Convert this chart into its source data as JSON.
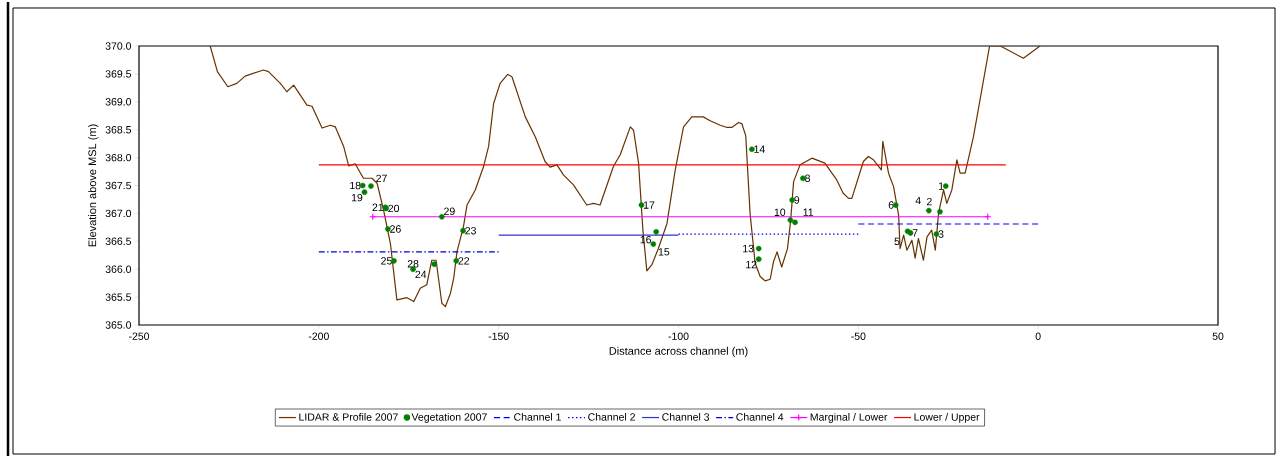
{
  "chart_data": {
    "type": "line",
    "xlabel": "Distance across channel (m)",
    "ylabel": "Elevation above MSL (m)",
    "xlim": [
      -250,
      50
    ],
    "xticks": [
      -250,
      -200,
      -150,
      -100,
      -50,
      0,
      50
    ],
    "ylim": [
      365,
      370
    ],
    "yticks": [
      {
        "value": 365,
        "label": "365.0"
      },
      365.5,
      {
        "value": 366,
        "label": "366.0"
      },
      366.5,
      {
        "value": 367,
        "label": "367.0"
      },
      367.5,
      {
        "value": 368,
        "label": "368.0"
      },
      368.5,
      {
        "value": 369,
        "label": "369.0"
      },
      369.5,
      {
        "value": 370,
        "label": "370.0"
      }
    ],
    "grid": false,
    "legend": "bottom",
    "series": [
      {
        "name": "LIDAR & Profile 2007",
        "color": "#663300",
        "marker": "none",
        "line_style": "solid",
        "x": [
          -230.2,
          -228.2,
          -225.3,
          -222.8,
          -220.5,
          -215.4,
          -214.0,
          -210.7,
          -208.9,
          -207.0,
          -203.3,
          -201.9,
          -199.1,
          -196.8,
          -195.4,
          -193.1,
          -191.7,
          -189.9,
          -187.6,
          -185.2,
          -183.8,
          -182.0,
          -180.1,
          -178.3,
          -175.5,
          -173.6,
          -171.8,
          -170.0,
          -168.6,
          -167.4,
          -165.8,
          -164.8,
          -163.4,
          -162.5,
          -161.6,
          -159.8,
          -158.8,
          -156.5,
          -154.2,
          -152.8,
          -151.4,
          -149.6,
          -147.5,
          -146.3,
          -142.6,
          -139.8,
          -137.1,
          -135.7,
          -133.8,
          -132.0,
          -129.2,
          -125.5,
          -123.6,
          -121.8,
          -118.1,
          -116.2,
          -113.4,
          -112.5,
          -111.1,
          -109.9,
          -108.8,
          -107.4,
          -105.6,
          -103.2,
          -100.9,
          -98.6,
          -96.3,
          -93.1,
          -91.2,
          -88.4,
          -86.5,
          -85.2,
          -83.3,
          -82.4,
          -81.3,
          -80.1,
          -78.7,
          -77.3,
          -75.9,
          -74.5,
          -73.6,
          -72.6,
          -71.3,
          -69.7,
          -68.8,
          -68.0,
          -66.2,
          -62.9,
          -59.3,
          -56.0,
          -54.2,
          -52.7,
          -51.8,
          -48.6,
          -47.2,
          -45.8,
          -43.6,
          -43.2,
          -41.6,
          -40.2,
          -38.8,
          -38.4,
          -37.4,
          -36.5,
          -35.1,
          -34.2,
          -33.3,
          -31.9,
          -30.9,
          -29.6,
          -28.6,
          -27.7,
          -26.3,
          -25.4,
          -24.0,
          -22.6,
          -21.7,
          -20.3,
          -18.0,
          -13.5,
          -10.5,
          -4.1,
          0.5
        ],
        "values": [
          370.0,
          369.54,
          369.27,
          369.33,
          369.46,
          369.57,
          369.54,
          369.33,
          369.18,
          369.3,
          368.94,
          368.92,
          368.53,
          368.58,
          368.55,
          368.2,
          367.85,
          367.89,
          367.63,
          367.63,
          367.54,
          367.06,
          366.46,
          365.45,
          365.49,
          365.42,
          365.66,
          365.72,
          366.16,
          366.16,
          365.39,
          365.33,
          365.57,
          365.84,
          366.31,
          366.76,
          367.15,
          367.42,
          367.84,
          368.2,
          368.97,
          369.33,
          369.49,
          369.45,
          368.73,
          368.37,
          367.93,
          367.83,
          367.87,
          367.69,
          367.51,
          367.15,
          367.18,
          367.15,
          367.84,
          368.05,
          368.55,
          368.49,
          367.9,
          366.7,
          365.97,
          366.08,
          366.37,
          366.82,
          367.78,
          368.55,
          368.73,
          368.73,
          368.66,
          368.58,
          368.54,
          368.54,
          368.63,
          368.61,
          368.39,
          367.0,
          366.11,
          365.87,
          365.79,
          365.82,
          366.13,
          366.31,
          366.04,
          366.37,
          366.88,
          367.57,
          367.87,
          367.99,
          367.9,
          367.6,
          367.36,
          367.27,
          367.27,
          367.93,
          368.02,
          367.96,
          367.78,
          368.29,
          367.72,
          367.48,
          366.97,
          366.37,
          366.61,
          366.34,
          366.52,
          366.2,
          366.55,
          366.16,
          366.58,
          366.7,
          366.34,
          367.0,
          367.42,
          367.18,
          367.42,
          367.96,
          367.72,
          367.72,
          368.37,
          370.0,
          370.0,
          369.78,
          370.0
        ]
      },
      {
        "name": "Vegetation 2007",
        "type": "scatter",
        "color": "#008000",
        "marker": "circle",
        "x": [
          -25.7,
          -27.3,
          -28.3,
          -30.4,
          -36.3,
          -39.6,
          -35.5,
          -65.4,
          -68.4,
          -68.9,
          -67.6,
          -77.7,
          -77.7,
          -79.6,
          -107.0,
          -106.2,
          -110.3,
          -187.8,
          -187.3,
          -181.3,
          -181.5,
          -161.8,
          -159.9,
          -167.9,
          -179.1,
          -180.8,
          -185.5,
          -173.8,
          -165.8
        ],
        "values": [
          367.49,
          367.03,
          366.63,
          367.05,
          366.68,
          367.15,
          366.65,
          367.63,
          367.24,
          366.88,
          366.84,
          366.18,
          366.37,
          368.15,
          366.45,
          366.67,
          367.15,
          367.5,
          367.38,
          367.09,
          367.11,
          366.15,
          366.69,
          366.09,
          366.15,
          366.72,
          367.49,
          366.0,
          366.94
        ]
      },
      {
        "name": "Channel 1",
        "color": "#0000ff",
        "marker": "none",
        "line_style": "dashed",
        "x": [
          -50,
          0
        ],
        "values": [
          366.81,
          366.81
        ]
      },
      {
        "name": "Channel 2",
        "color": "#0000ff",
        "marker": "none",
        "line_style": "dotted",
        "x": [
          -100,
          -50
        ],
        "values": [
          366.63,
          366.63
        ]
      },
      {
        "name": "Channel 3",
        "color": "#3333cc",
        "marker": "none",
        "line_style": "solid",
        "x": [
          -150,
          -100
        ],
        "values": [
          366.61,
          366.61
        ]
      },
      {
        "name": "Channel 4",
        "color": "#0000cc",
        "marker": "none",
        "line_style": "dashdot",
        "x": [
          -200,
          -150
        ],
        "values": [
          366.31,
          366.31
        ]
      },
      {
        "name": "Marginal / Lower",
        "color": "#ff00ff",
        "marker": "cross",
        "line_style": "solid",
        "x": [
          -185,
          -14
        ],
        "values": [
          366.94,
          366.94
        ]
      },
      {
        "name": "Lower / Upper",
        "color": "#ff0000",
        "marker": "none",
        "line_style": "solid",
        "x": [
          -200,
          -9
        ],
        "values": [
          367.87,
          367.87
        ]
      }
    ],
    "annotations": [
      {
        "text": "1",
        "x": -25.7,
        "y": 367.49
      },
      {
        "text": "2",
        "x": -27.3,
        "y": 367.03
      },
      {
        "text": "3",
        "x": -28.3,
        "y": 366.63
      },
      {
        "text": "4",
        "x": -30.4,
        "y": 367.05
      },
      {
        "text": "5",
        "x": -36.3,
        "y": 366.68
      },
      {
        "text": "6",
        "x": -39.6,
        "y": 367.15
      },
      {
        "text": "7",
        "x": -35.5,
        "y": 366.65
      },
      {
        "text": "8",
        "x": -65.4,
        "y": 367.63
      },
      {
        "text": "9",
        "x": -68.4,
        "y": 367.24
      },
      {
        "text": "10",
        "x": -68.9,
        "y": 366.88
      },
      {
        "text": "11",
        "x": -67.6,
        "y": 366.84
      },
      {
        "text": "12",
        "x": -77.7,
        "y": 366.18
      },
      {
        "text": "13",
        "x": -77.7,
        "y": 366.37
      },
      {
        "text": "14",
        "x": -79.6,
        "y": 368.15
      },
      {
        "text": "15",
        "x": -107.0,
        "y": 366.45
      },
      {
        "text": "16",
        "x": -106.2,
        "y": 366.67
      },
      {
        "text": "17",
        "x": -110.3,
        "y": 367.15
      },
      {
        "text": "18",
        "x": -187.8,
        "y": 367.5
      },
      {
        "text": "19",
        "x": -187.3,
        "y": 367.38
      },
      {
        "text": "20",
        "x": -181.3,
        "y": 367.09
      },
      {
        "text": "21",
        "x": -181.5,
        "y": 367.11
      },
      {
        "text": "22",
        "x": -161.8,
        "y": 366.15
      },
      {
        "text": "23",
        "x": -159.9,
        "y": 366.69
      },
      {
        "text": "24",
        "x": -167.9,
        "y": 366.09
      },
      {
        "text": "25",
        "x": -179.1,
        "y": 366.15
      },
      {
        "text": "26",
        "x": -180.8,
        "y": 366.72
      },
      {
        "text": "27",
        "x": -185.5,
        "y": 367.49
      },
      {
        "text": "28",
        "x": -173.8,
        "y": 366.0
      },
      {
        "text": "29",
        "x": -165.8,
        "y": 366.94
      }
    ]
  }
}
